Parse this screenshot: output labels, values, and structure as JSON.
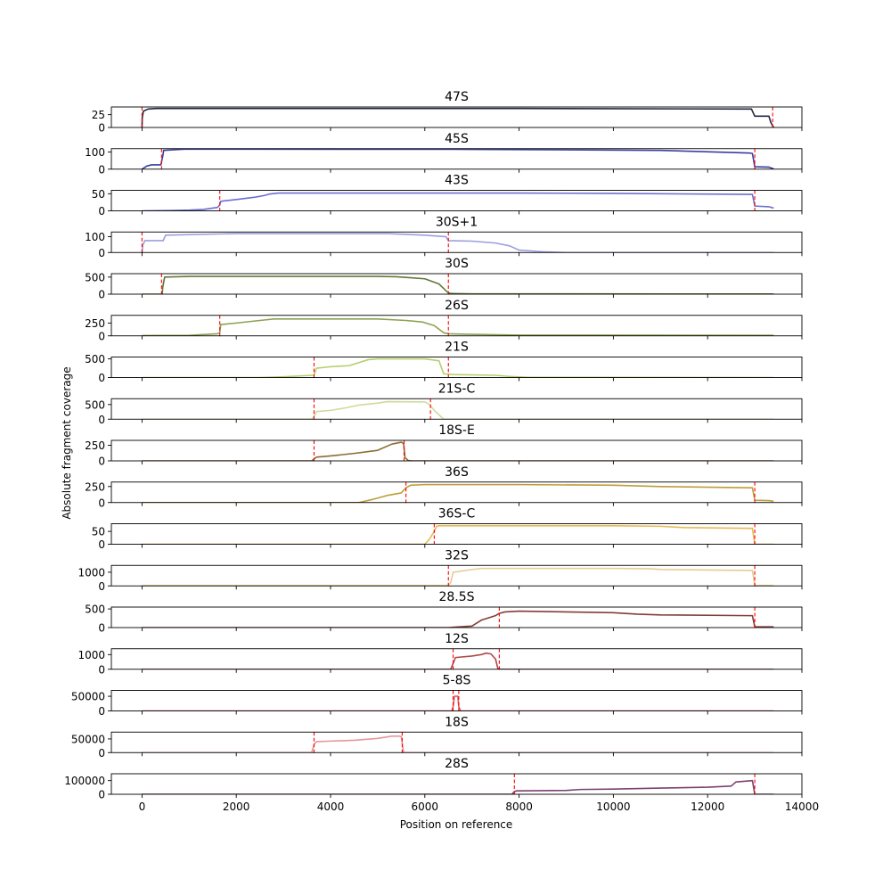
{
  "chart_data": {
    "type": "line",
    "xlabel": "Position on reference",
    "ylabel": "Absolute fragment coverage",
    "xlim": [
      -650,
      14000
    ],
    "x_ticks": [
      0,
      2000,
      4000,
      6000,
      8000,
      10000,
      12000,
      14000
    ],
    "grid": false,
    "marker_color": "#ff0000",
    "panels": [
      {
        "title": "47S",
        "color": "#222845",
        "ylim": [
          0,
          40
        ],
        "y_ticks": [
          0,
          25
        ],
        "markers": [
          0,
          13380
        ],
        "x": [
          0,
          5,
          30,
          130,
          300,
          2000,
          8000,
          12900,
          12930,
          13000,
          13300,
          13340,
          13400
        ],
        "y": [
          0,
          20,
          32,
          36,
          37,
          37,
          37,
          36,
          36,
          22,
          22,
          10,
          0
        ]
      },
      {
        "title": "45S",
        "color": "#3a3f9e",
        "ylim": [
          0,
          120
        ],
        "y_ticks": [
          0,
          100
        ],
        "markers": [
          415,
          13000
        ],
        "x": [
          0,
          100,
          200,
          400,
          440,
          460,
          900,
          2000,
          7000,
          11000,
          12900,
          12950,
          13000,
          13300,
          13400
        ],
        "y": [
          0,
          18,
          25,
          25,
          75,
          110,
          117,
          117,
          116,
          110,
          94,
          92,
          14,
          12,
          2
        ]
      },
      {
        "title": "43S",
        "color": "#6b6ecf",
        "ylim": [
          0,
          60
        ],
        "y_ticks": [
          0,
          50
        ],
        "markers": [
          1650,
          13000
        ],
        "x": [
          0,
          600,
          1000,
          1300,
          1600,
          1650,
          1670,
          2000,
          2400,
          2600,
          2700,
          2900,
          8000,
          10000,
          12900,
          12950,
          13000,
          13300,
          13400
        ],
        "y": [
          0,
          1,
          2,
          4,
          10,
          17,
          28,
          33,
          40,
          45,
          49,
          52,
          52,
          51,
          48,
          48,
          14,
          12,
          8
        ]
      },
      {
        "title": "30S+1",
        "color": "#9c9ede",
        "ylim": [
          0,
          130
        ],
        "y_ticks": [
          0,
          100
        ],
        "markers": [
          0,
          6500
        ],
        "x": [
          0,
          20,
          60,
          450,
          500,
          2000,
          5200,
          5500,
          6000,
          6450,
          6500,
          7000,
          7500,
          7800,
          8000,
          8500,
          9000,
          13400
        ],
        "y": [
          0,
          50,
          75,
          75,
          110,
          120,
          120,
          116,
          110,
          100,
          75,
          72,
          60,
          42,
          15,
          5,
          0,
          0
        ]
      },
      {
        "title": "30S",
        "color": "#637939",
        "ylim": [
          0,
          600
        ],
        "y_ticks": [
          0,
          500
        ],
        "markers": [
          415,
          6500
        ],
        "x": [
          0,
          430,
          440,
          480,
          1000,
          5000,
          5400,
          5700,
          6000,
          6300,
          6450,
          6500,
          6550,
          7000,
          13400
        ],
        "y": [
          0,
          0,
          200,
          500,
          520,
          520,
          510,
          480,
          450,
          300,
          100,
          40,
          20,
          10,
          5
        ]
      },
      {
        "title": "26S",
        "color": "#8ca252",
        "ylim": [
          0,
          400
        ],
        "y_ticks": [
          0,
          250
        ],
        "markers": [
          1650,
          6500
        ],
        "x": [
          0,
          1000,
          1600,
          1650,
          1670,
          2000,
          2500,
          2800,
          5000,
          5600,
          5950,
          6200,
          6400,
          6500,
          7000,
          8000,
          13400
        ],
        "y": [
          5,
          10,
          40,
          60,
          220,
          250,
          300,
          330,
          330,
          300,
          270,
          200,
          60,
          40,
          30,
          15,
          10
        ]
      },
      {
        "title": "21S",
        "color": "#b5cf6b",
        "ylim": [
          0,
          550
        ],
        "y_ticks": [
          0,
          500
        ],
        "markers": [
          3650,
          6500
        ],
        "x": [
          0,
          2500,
          3000,
          3600,
          3650,
          3700,
          4000,
          4400,
          4800,
          5000,
          6000,
          6300,
          6400,
          6500,
          6600,
          7500,
          7800,
          8200,
          13400
        ],
        "y": [
          0,
          0,
          20,
          60,
          60,
          250,
          290,
          320,
          480,
          500,
          500,
          450,
          100,
          90,
          80,
          60,
          30,
          5,
          0
        ]
      },
      {
        "title": "21S-C",
        "color": "#cedb9c",
        "ylim": [
          0,
          700
        ],
        "y_ticks": [
          0,
          500
        ],
        "markers": [
          3650,
          6120
        ],
        "x": [
          0,
          3600,
          3650,
          3700,
          4000,
          4300,
          4600,
          5000,
          5200,
          6000,
          6100,
          6200,
          6400,
          13400
        ],
        "y": [
          0,
          0,
          100,
          260,
          300,
          380,
          480,
          550,
          600,
          590,
          500,
          300,
          0,
          0
        ]
      },
      {
        "title": "18S-E",
        "color": "#8c6d31",
        "ylim": [
          0,
          330
        ],
        "y_ticks": [
          0,
          250
        ],
        "markers": [
          3650,
          5560
        ],
        "x": [
          0,
          3600,
          3650,
          3700,
          4000,
          4500,
          5000,
          5300,
          5500,
          5550,
          5580,
          5650,
          5750,
          13400
        ],
        "y": [
          0,
          0,
          30,
          60,
          80,
          120,
          170,
          270,
          300,
          280,
          50,
          5,
          0,
          0
        ]
      },
      {
        "title": "36S",
        "color": "#bd9e39",
        "ylim": [
          0,
          320
        ],
        "y_ticks": [
          0,
          250
        ],
        "markers": [
          5600,
          13000
        ],
        "x": [
          0,
          4600,
          4900,
          5200,
          5500,
          5600,
          5700,
          6000,
          8000,
          10000,
          11000,
          12900,
          12950,
          13000,
          13300,
          13400
        ],
        "y": [
          0,
          0,
          50,
          110,
          150,
          230,
          270,
          280,
          280,
          270,
          250,
          230,
          230,
          35,
          30,
          20
        ]
      },
      {
        "title": "36S-C",
        "color": "#e7ba52",
        "ylim": [
          0,
          80
        ],
        "y_ticks": [
          0,
          50
        ],
        "markers": [
          6200,
          13000
        ],
        "x": [
          0,
          6000,
          6100,
          6200,
          6250,
          6300,
          6500,
          8000,
          10000,
          11000,
          11500,
          12900,
          12950,
          13000,
          13400
        ],
        "y": [
          0,
          0,
          20,
          50,
          70,
          72,
          72,
          72,
          72,
          70,
          65,
          62,
          62,
          0,
          0
        ]
      },
      {
        "title": "32S",
        "color": "#e7cb94",
        "ylim": [
          0,
          1500
        ],
        "y_ticks": [
          0,
          1000
        ],
        "markers": [
          6500,
          13000
        ],
        "x": [
          0,
          6450,
          6500,
          6550,
          6600,
          6900,
          7200,
          10000,
          10800,
          11000,
          12900,
          12950,
          13000,
          13300,
          13400
        ],
        "y": [
          30,
          30,
          30,
          250,
          1000,
          1150,
          1280,
          1280,
          1250,
          1200,
          1130,
          1130,
          30,
          30,
          30
        ]
      },
      {
        "title": "28.5S",
        "color": "#843c39",
        "ylim": [
          0,
          550
        ],
        "y_ticks": [
          0,
          500
        ],
        "markers": [
          7580,
          13000
        ],
        "x": [
          0,
          6500,
          7000,
          7200,
          7500,
          7580,
          7700,
          8000,
          10000,
          10500,
          11000,
          12900,
          12950,
          13000,
          13400
        ],
        "y": [
          0,
          0,
          40,
          200,
          320,
          380,
          420,
          440,
          400,
          360,
          340,
          320,
          320,
          20,
          20
        ]
      },
      {
        "title": "12S",
        "color": "#ad494a",
        "ylim": [
          0,
          1400
        ],
        "y_ticks": [
          0,
          1000
        ],
        "markers": [
          6600,
          7580
        ],
        "x": [
          0,
          6550,
          6600,
          6650,
          7000,
          7200,
          7300,
          7400,
          7500,
          7550,
          7600,
          13400
        ],
        "y": [
          0,
          0,
          400,
          800,
          900,
          1000,
          1100,
          1050,
          700,
          50,
          0,
          0
        ]
      },
      {
        "title": "5-8S",
        "color": "#d6616b",
        "ylim": [
          0,
          70000
        ],
        "y_ticks": [
          0,
          50000
        ],
        "markers": [
          6600,
          6720
        ],
        "x": [
          0,
          6570,
          6600,
          6630,
          6650,
          6700,
          6720,
          6760,
          13400
        ],
        "y": [
          0,
          0,
          15000,
          50000,
          50000,
          50000,
          15000,
          0,
          0
        ]
      },
      {
        "title": "18S",
        "color": "#e7969c",
        "ylim": [
          0,
          75000
        ],
        "y_ticks": [
          0,
          50000
        ],
        "markers": [
          3650,
          5520
        ],
        "x": [
          0,
          3600,
          3650,
          3700,
          4000,
          4500,
          5000,
          5300,
          5450,
          5500,
          5550,
          13400
        ],
        "y": [
          0,
          0,
          30000,
          40000,
          42000,
          45000,
          52000,
          60000,
          60000,
          59000,
          0,
          0
        ]
      },
      {
        "title": "28S",
        "color": "#7b4173",
        "ylim": [
          0,
          150000
        ],
        "y_ticks": [
          0,
          100000
        ],
        "markers": [
          7900,
          13000
        ],
        "x": [
          0,
          7850,
          7900,
          7950,
          9000,
          9300,
          10000,
          11000,
          12000,
          12500,
          12600,
          12950,
          13000,
          13400
        ],
        "y": [
          0,
          0,
          20000,
          25000,
          28000,
          35000,
          38000,
          45000,
          52000,
          60000,
          90000,
          100000,
          0,
          0
        ]
      }
    ]
  }
}
